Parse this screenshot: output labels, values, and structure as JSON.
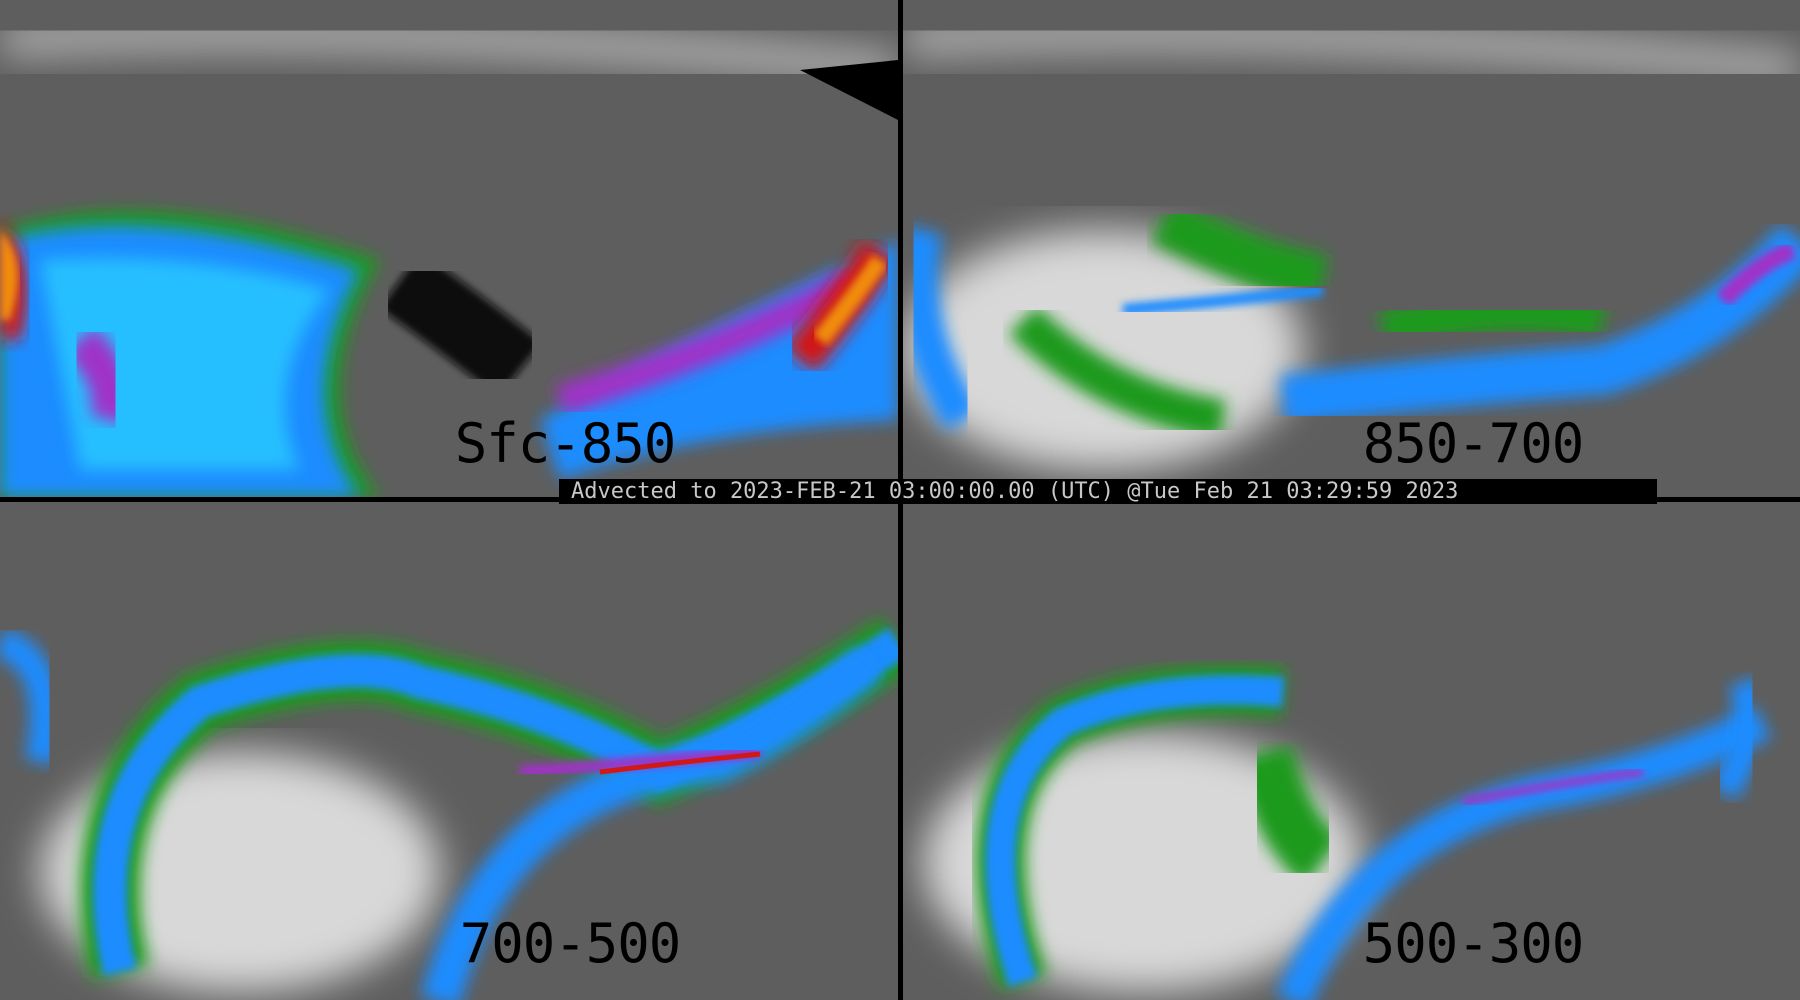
{
  "banner": {
    "text": "Advected to 2023-FEB-21 03:00:00.00 (UTC) @Tue Feb 21 03:29:59 2023"
  },
  "panels": [
    {
      "label": "Sfc-850"
    },
    {
      "label": "850-700"
    },
    {
      "label": "700-500"
    },
    {
      "label": "500-300"
    }
  ],
  "colors": {
    "background": "#5a5a5a",
    "light": "#e6e6e6",
    "green": "#1a9a1a",
    "blue": "#1e8cff",
    "cyan": "#2cd4ff",
    "purple": "#a030c8",
    "red": "#d01818",
    "orange": "#f08c10"
  }
}
